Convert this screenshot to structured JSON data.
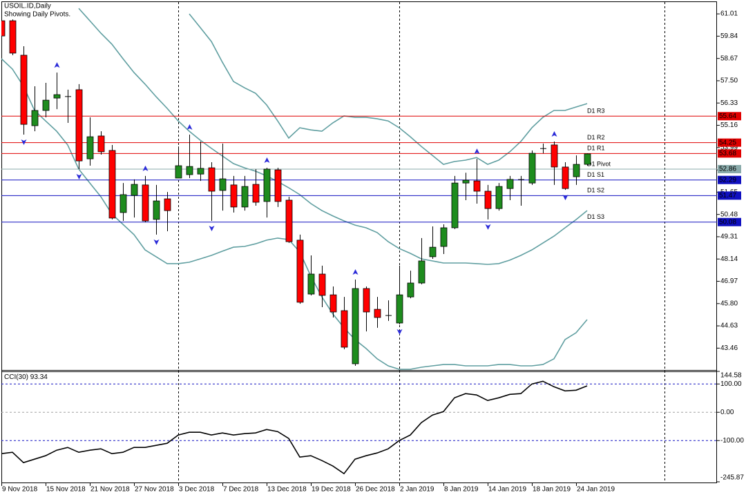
{
  "chart_data": [
    {
      "type": "candlestick",
      "title": "USOIL.ID,Daily",
      "subtitle": "Showing Daily Pivots.",
      "categories": [
        "9 Nov 2018",
        null,
        null,
        null,
        "15 Nov 2018",
        null,
        null,
        null,
        "21 Nov 2018",
        null,
        null,
        null,
        "27 Nov 2018",
        null,
        null,
        null,
        "3 Dec 2018",
        null,
        null,
        null,
        "7 Dec 2018",
        null,
        null,
        null,
        "13 Dec 2018",
        null,
        null,
        null,
        "19 Dec 2018",
        null,
        null,
        null,
        "26 Dec 2018",
        null,
        null,
        null,
        "2 Jan 2019",
        null,
        null,
        null,
        "8 Jan 2019",
        null,
        null,
        null,
        "14 Jan 2019",
        null,
        null,
        null,
        "18 Jan 2019",
        null,
        null,
        null,
        "24 Jan 2019",
        null
      ],
      "open": [
        60.65,
        60.65,
        58.84,
        55.14,
        55.94,
        56.59,
        56.68,
        57.03,
        53.4,
        54.6,
        53.84,
        50.58,
        51.48,
        52.03,
        50.22,
        51.3,
        52.39,
        52.57,
        52.6,
        52.93,
        51.74,
        52.03,
        50.87,
        52.06,
        51.16,
        52.82,
        51.23,
        49.13,
        46.3,
        47.35,
        46.26,
        45.43,
        42.64,
        46.59,
        45.5,
        45.21,
        44.78,
        46.15,
        46.88,
        48.26,
        48.8,
        49.78,
        52.13,
        52.24,
        51.7,
        50.79,
        51.84,
        52.32,
        52.13,
        53.95,
        54.13,
        52.97,
        52.46,
        53.11
      ],
      "high": [
        60.94,
        60.72,
        59.31,
        57.21,
        57.39,
        57.93,
        57.03,
        57.32,
        55.58,
        54.85,
        54.13,
        52.13,
        52.32,
        52.5,
        52.03,
        51.66,
        54.05,
        54.67,
        54.31,
        53.22,
        54.2,
        52.5,
        52.5,
        52.86,
        52.93,
        52.93,
        51.41,
        49.42,
        48.33,
        47.79,
        46.7,
        46.15,
        47.06,
        46.7,
        46.15,
        45.97,
        47.79,
        47.53,
        49.24,
        49.85,
        49.96,
        52.5,
        52.67,
        53.4,
        52.03,
        52.13,
        52.5,
        52.5,
        53.84,
        54.2,
        54.31,
        53.22,
        53.58,
        53.69
      ],
      "low": [
        59.8,
        58.84,
        54.67,
        54.85,
        55.58,
        56.01,
        55.29,
        52.86,
        53.04,
        53.62,
        50.22,
        50.14,
        50.32,
        50.07,
        49.42,
        49.6,
        52.39,
        52.39,
        52.24,
        50.14,
        50.68,
        50.58,
        50.68,
        50.94,
        50.32,
        50.87,
        48.98,
        45.79,
        46.23,
        45.61,
        45.07,
        43.4,
        42.53,
        44.34,
        44.53,
        44.89,
        44.71,
        46.08,
        46.81,
        48.15,
        48.4,
        49.71,
        51.23,
        51.05,
        50.22,
        50.68,
        51.23,
        50.94,
        52.03,
        53.69,
        52.03,
        51.77,
        52.03,
        53.04
      ],
      "close": [
        59.85,
        58.95,
        55.21,
        55.94,
        56.48,
        56.77,
        56.66,
        53.29,
        54.56,
        53.77,
        50.29,
        51.52,
        52.06,
        50.14,
        51.19,
        50.68,
        53.04,
        53.0,
        52.9,
        51.7,
        52.35,
        50.87,
        51.95,
        51.12,
        52.86,
        51.16,
        49.05,
        45.87,
        47.35,
        46.23,
        45.36,
        43.51,
        46.59,
        45.36,
        45.07,
        45.14,
        46.26,
        46.88,
        48.04,
        48.76,
        49.78,
        52.13,
        52.28,
        51.7,
        50.79,
        51.95,
        52.32,
        52.3,
        53.69,
        53.93,
        52.97,
        51.84,
        53.11,
        53.66
      ],
      "up_color": "#1e8c1e",
      "down_color": "#ff0000",
      "bands": {
        "color": "#5f9ea0",
        "upper": [
          null,
          null,
          null,
          null,
          null,
          null,
          null,
          null,
          null,
          null,
          null,
          null,
          null,
          null,
          null,
          null,
          null,
          61.01,
          60.29,
          59.56,
          58.47,
          57.46,
          57.13,
          56.84,
          56.23,
          55.39,
          54.49,
          55.03,
          54.92,
          54.85,
          55.29,
          55.65,
          55.58,
          55.58,
          55.5,
          55.39,
          55.03,
          54.56,
          54.05,
          53.58,
          53.11,
          53.26,
          53.33,
          53.47,
          53.11,
          53.33,
          53.77,
          54.31,
          55.03,
          55.58,
          55.94,
          55.94,
          56.12,
          56.3
        ],
        "middle": [
          null,
          null,
          null,
          null,
          null,
          null,
          null,
          61.3,
          60.65,
          60.0,
          59.42,
          58.66,
          57.93,
          57.32,
          56.66,
          56.05,
          55.39,
          54.85,
          54.38,
          53.95,
          53.55,
          53.15,
          52.93,
          52.75,
          52.5,
          52.21,
          51.88,
          51.52,
          51.05,
          50.68,
          50.4,
          50.14,
          49.92,
          49.78,
          49.53,
          49.05,
          48.69,
          48.44,
          48.15,
          48.04,
          47.93,
          47.93,
          47.93,
          47.9,
          47.86,
          47.9,
          48.08,
          48.33,
          48.62,
          48.98,
          49.34,
          49.78,
          50.21,
          50.68
        ],
        "lower": [
          58.66,
          58.11,
          57.21,
          55.94,
          55.39,
          54.85,
          54.13,
          52.86,
          52.13,
          51.41,
          50.5,
          49.96,
          49.42,
          48.62,
          48.26,
          47.9,
          47.9,
          47.97,
          48.15,
          48.33,
          48.55,
          48.76,
          48.8,
          48.94,
          49.13,
          49.24,
          49.16,
          48.51,
          47.24,
          46.15,
          45.25,
          44.53,
          43.91,
          43.44,
          42.9,
          42.53,
          42.35,
          42.35,
          42.46,
          42.53,
          42.6,
          42.6,
          42.53,
          42.53,
          42.53,
          42.6,
          42.6,
          42.53,
          42.53,
          42.6,
          42.9,
          43.91,
          44.27,
          44.96
        ]
      },
      "fractals": {
        "color": "#2a2ad8",
        "up": [
          null,
          null,
          null,
          null,
          null,
          57.93,
          null,
          null,
          null,
          null,
          null,
          null,
          null,
          52.5,
          null,
          null,
          null,
          54.67,
          null,
          null,
          null,
          null,
          null,
          null,
          52.93,
          null,
          null,
          null,
          null,
          null,
          null,
          null,
          47.06,
          null,
          null,
          null,
          null,
          null,
          null,
          null,
          null,
          null,
          null,
          53.4,
          null,
          null,
          null,
          null,
          null,
          null,
          54.31,
          null,
          null,
          null
        ],
        "down": [
          null,
          null,
          54.67,
          null,
          null,
          null,
          null,
          52.86,
          null,
          null,
          null,
          null,
          null,
          null,
          49.42,
          null,
          null,
          null,
          null,
          50.14,
          null,
          null,
          null,
          null,
          null,
          null,
          null,
          null,
          null,
          null,
          null,
          null,
          42.53,
          null,
          null,
          null,
          44.71,
          null,
          null,
          null,
          null,
          null,
          null,
          null,
          50.22,
          null,
          null,
          null,
          null,
          null,
          null,
          51.77,
          null,
          null
        ]
      },
      "pivots": [
        {
          "label": "D1 R3",
          "value": 55.64,
          "color": "#e00000"
        },
        {
          "label": "D1 R2",
          "value": 54.25,
          "color": "#e00000"
        },
        {
          "label": "D1 R1",
          "value": 53.68,
          "color": "#e00000"
        },
        {
          "label": "D1 Pivot",
          "value": 52.86,
          "color": "#8aabab"
        },
        {
          "label": "D1 S1",
          "value": 52.29,
          "color": "#1010c0"
        },
        {
          "label": "D1 S2",
          "value": 51.47,
          "color": "#1010c0"
        },
        {
          "label": "D1 S3",
          "value": 50.08,
          "color": "#1010c0"
        }
      ],
      "ylim": [
        42.35,
        61.63
      ],
      "yticks": [
        61.01,
        59.84,
        58.67,
        {
          "value": 57.5,
          "label": "57.50"
        },
        56.33,
        55.16,
        53.99,
        52.82,
        51.65,
        50.48,
        49.31,
        48.14,
        46.97,
        {
          "value": 45.8,
          "label": "45.80"
        },
        44.63,
        43.46
      ]
    },
    {
      "type": "line",
      "title": "CCI(30)",
      "color": "#000000",
      "values": [
        -146.3,
        -141.5,
        -178,
        -165.9,
        -153.7,
        -134.1,
        -124.4,
        -141.5,
        -134.1,
        -129.3,
        -146.3,
        -141.5,
        -124.4,
        -124.4,
        -117.1,
        -109.8,
        -80.5,
        -70.7,
        -70.7,
        -80.5,
        -73.2,
        -80.5,
        -75.6,
        -73.2,
        -61,
        -68.3,
        -92.7,
        -158.5,
        -153.7,
        -170.7,
        -190.2,
        -217.1,
        -165.9,
        -153.7,
        -143.9,
        -129.3,
        -100,
        -80.5,
        -36.6,
        -9.8,
        2.4,
        51.2,
        65.9,
        61,
        41.5,
        51.2,
        63.4,
        65.9,
        100,
        109.8,
        90.2,
        75.6,
        78,
        93.34
      ],
      "levels": [
        {
          "value": 100,
          "color": "#1010c0"
        },
        {
          "value": 0,
          "color": "#a0a0a0"
        },
        {
          "value": -100,
          "color": "#1010c0"
        }
      ],
      "ylim": [
        -245.87,
        144.58
      ],
      "yticks": [
        144.58,
        {
          "value": 100,
          "label": "100.00"
        },
        {
          "value": 0,
          "label": "0.00"
        },
        {
          "value": -100,
          "label": "-100.00"
        },
        -245.87
      ]
    }
  ]
}
